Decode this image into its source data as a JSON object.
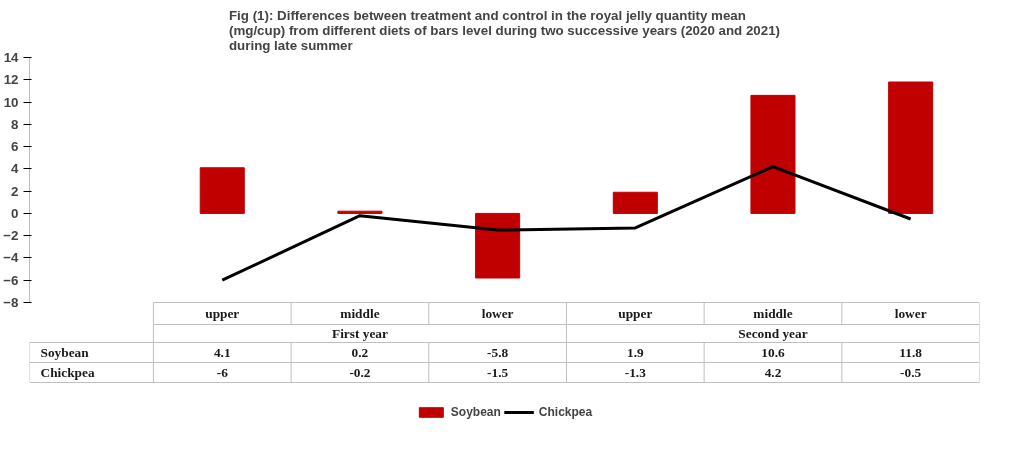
{
  "chart_data": {
    "type": "bar",
    "title": "Fig (1): Differences between treatment and control in the royal jelly  quantity mean (mg/cup) from different diets of bars level during two successive years (2020 and 2021) during late summer",
    "categories": [
      "upper",
      "middle",
      "lower",
      "upper",
      "middle",
      "lower"
    ],
    "series": [
      {
        "name": "Soybean",
        "color": "#c00000",
        "values": [
          4.1,
          0.2,
          -5.8,
          1.9,
          10.6,
          11.8
        ]
      },
      {
        "name": "Chickpea",
        "type": "line",
        "color": "#000000",
        "values": [
          -6,
          -0.2,
          -1.5,
          -1.3,
          4.2,
          -0.5
        ]
      }
    ],
    "annotations": [
      "First year",
      "Second year"
    ],
    "ylim": [
      -8,
      14
    ],
    "yticks": [
      -8,
      -6,
      -4,
      -2,
      0,
      2,
      4,
      6,
      8,
      10,
      12,
      14
    ],
    "data_labels": true,
    "legend": "bottom",
    "grid": false
  }
}
